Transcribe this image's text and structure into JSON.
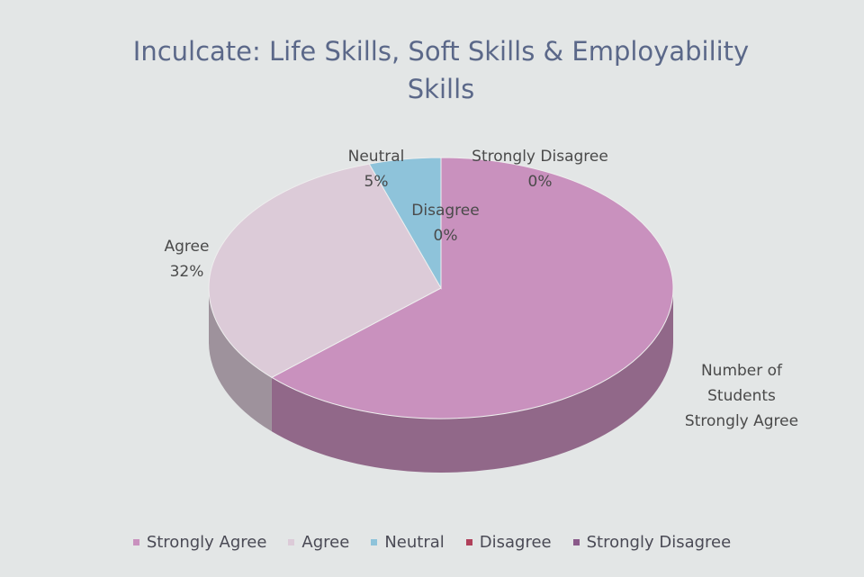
{
  "chart_data": {
    "type": "pie3d",
    "title": "Inculcate: Life Skills, Soft Skills & Employability Skills",
    "categories": [
      "Strongly Agree",
      "Agree",
      "Neutral",
      "Disagree",
      "Strongly Disagree"
    ],
    "values": [
      63,
      32,
      5,
      0,
      0
    ],
    "value_labels": [
      null,
      "32%",
      "5%",
      "0%",
      "0%"
    ],
    "data_labels": [
      "Number of Students Strongly Agree",
      "Agree",
      "Neutral",
      "Disagree",
      "Strongly Disagree"
    ],
    "colors": [
      "#c991be",
      "#dccbd8",
      "#8ec3da",
      "#b0405a",
      "#8a5a8a"
    ],
    "legend": "bottom"
  }
}
